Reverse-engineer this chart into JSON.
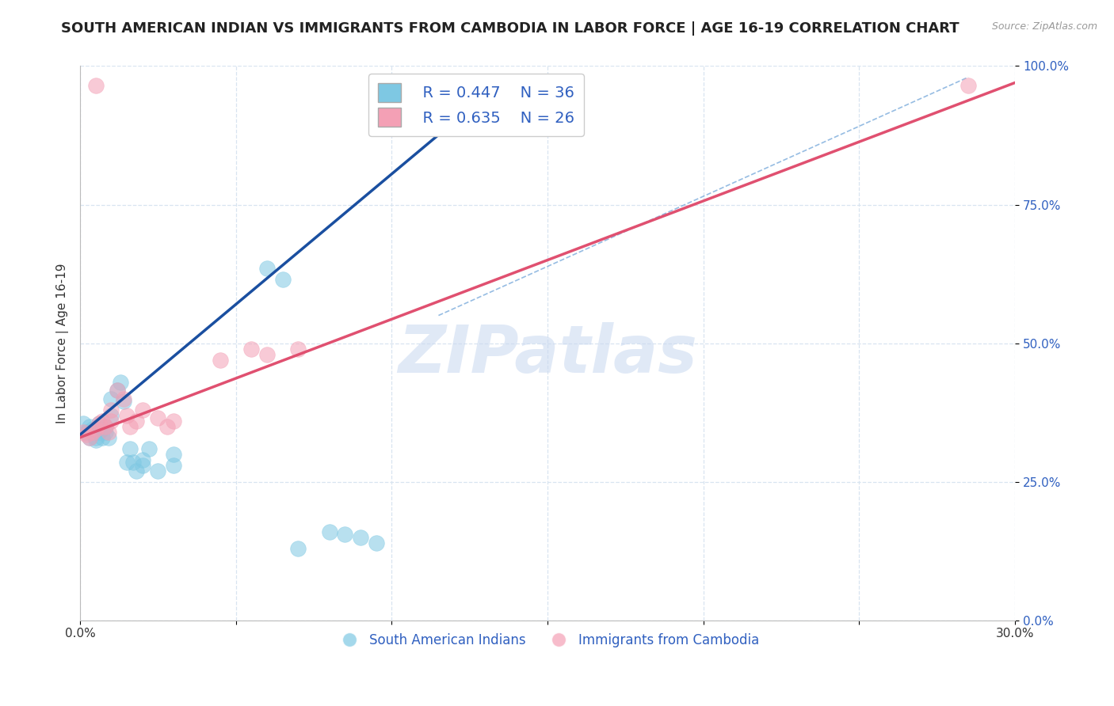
{
  "title": "SOUTH AMERICAN INDIAN VS IMMIGRANTS FROM CAMBODIA IN LABOR FORCE | AGE 16-19 CORRELATION CHART",
  "source_text": "Source: ZipAtlas.com",
  "ylabel": "In Labor Force | Age 16-19",
  "xmin": 0.0,
  "xmax": 0.3,
  "ymin": 0.0,
  "ymax": 1.0,
  "yticks": [
    0.0,
    0.25,
    0.5,
    0.75,
    1.0
  ],
  "ytick_labels": [
    "0.0%",
    "25.0%",
    "50.0%",
    "75.0%",
    "100.0%"
  ],
  "xticks": [
    0.0,
    0.05,
    0.1,
    0.15,
    0.2,
    0.25,
    0.3
  ],
  "xtick_labels": [
    "0.0%",
    "",
    "",
    "",
    "",
    "",
    "30.0%"
  ],
  "blue_color": "#7ec8e3",
  "pink_color": "#f4a0b5",
  "blue_line_color": "#1a4fa0",
  "pink_line_color": "#e05070",
  "dashed_line_color": "#5090d0",
  "grid_color": "#d8e4f0",
  "watermark_color": "#c8d8f0",
  "legend_R1": "R = 0.447",
  "legend_N1": "N = 36",
  "legend_R2": "R = 0.635",
  "legend_N2": "N = 26",
  "blue_scatter": [
    [
      0.001,
      0.355
    ],
    [
      0.002,
      0.34
    ],
    [
      0.003,
      0.33
    ],
    [
      0.003,
      0.35
    ],
    [
      0.004,
      0.345
    ],
    [
      0.005,
      0.33
    ],
    [
      0.005,
      0.325
    ],
    [
      0.006,
      0.34
    ],
    [
      0.006,
      0.355
    ],
    [
      0.007,
      0.345
    ],
    [
      0.007,
      0.33
    ],
    [
      0.008,
      0.34
    ],
    [
      0.008,
      0.35
    ],
    [
      0.009,
      0.33
    ],
    [
      0.01,
      0.37
    ],
    [
      0.01,
      0.4
    ],
    [
      0.012,
      0.415
    ],
    [
      0.013,
      0.43
    ],
    [
      0.014,
      0.395
    ],
    [
      0.015,
      0.285
    ],
    [
      0.016,
      0.31
    ],
    [
      0.017,
      0.285
    ],
    [
      0.018,
      0.27
    ],
    [
      0.02,
      0.29
    ],
    [
      0.02,
      0.28
    ],
    [
      0.022,
      0.31
    ],
    [
      0.025,
      0.27
    ],
    [
      0.03,
      0.28
    ],
    [
      0.03,
      0.3
    ],
    [
      0.06,
      0.635
    ],
    [
      0.065,
      0.615
    ],
    [
      0.07,
      0.13
    ],
    [
      0.08,
      0.16
    ],
    [
      0.085,
      0.155
    ],
    [
      0.09,
      0.15
    ],
    [
      0.095,
      0.14
    ]
  ],
  "pink_scatter": [
    [
      0.001,
      0.34
    ],
    [
      0.002,
      0.335
    ],
    [
      0.003,
      0.33
    ],
    [
      0.004,
      0.34
    ],
    [
      0.005,
      0.345
    ],
    [
      0.006,
      0.355
    ],
    [
      0.007,
      0.36
    ],
    [
      0.008,
      0.35
    ],
    [
      0.009,
      0.34
    ],
    [
      0.01,
      0.36
    ],
    [
      0.01,
      0.38
    ],
    [
      0.012,
      0.415
    ],
    [
      0.014,
      0.4
    ],
    [
      0.015,
      0.37
    ],
    [
      0.016,
      0.35
    ],
    [
      0.018,
      0.36
    ],
    [
      0.02,
      0.38
    ],
    [
      0.025,
      0.365
    ],
    [
      0.028,
      0.35
    ],
    [
      0.03,
      0.36
    ],
    [
      0.045,
      0.47
    ],
    [
      0.055,
      0.49
    ],
    [
      0.06,
      0.48
    ],
    [
      0.07,
      0.49
    ],
    [
      0.005,
      0.965
    ],
    [
      0.285,
      0.965
    ]
  ],
  "blue_line_x": [
    0.0,
    0.135
  ],
  "blue_line_y": [
    0.335,
    0.97
  ],
  "pink_line_x": [
    0.0,
    0.3
  ],
  "pink_line_y": [
    0.33,
    0.97
  ],
  "dashed_line_x": [
    0.115,
    0.285
  ],
  "dashed_line_y": [
    0.55,
    0.98
  ],
  "title_fontsize": 13,
  "axis_label_fontsize": 11,
  "tick_fontsize": 11,
  "legend_fontsize": 14,
  "watermark_fontsize": 60,
  "bottom_legend_labels": [
    "South American Indians",
    "Immigrants from Cambodia"
  ]
}
